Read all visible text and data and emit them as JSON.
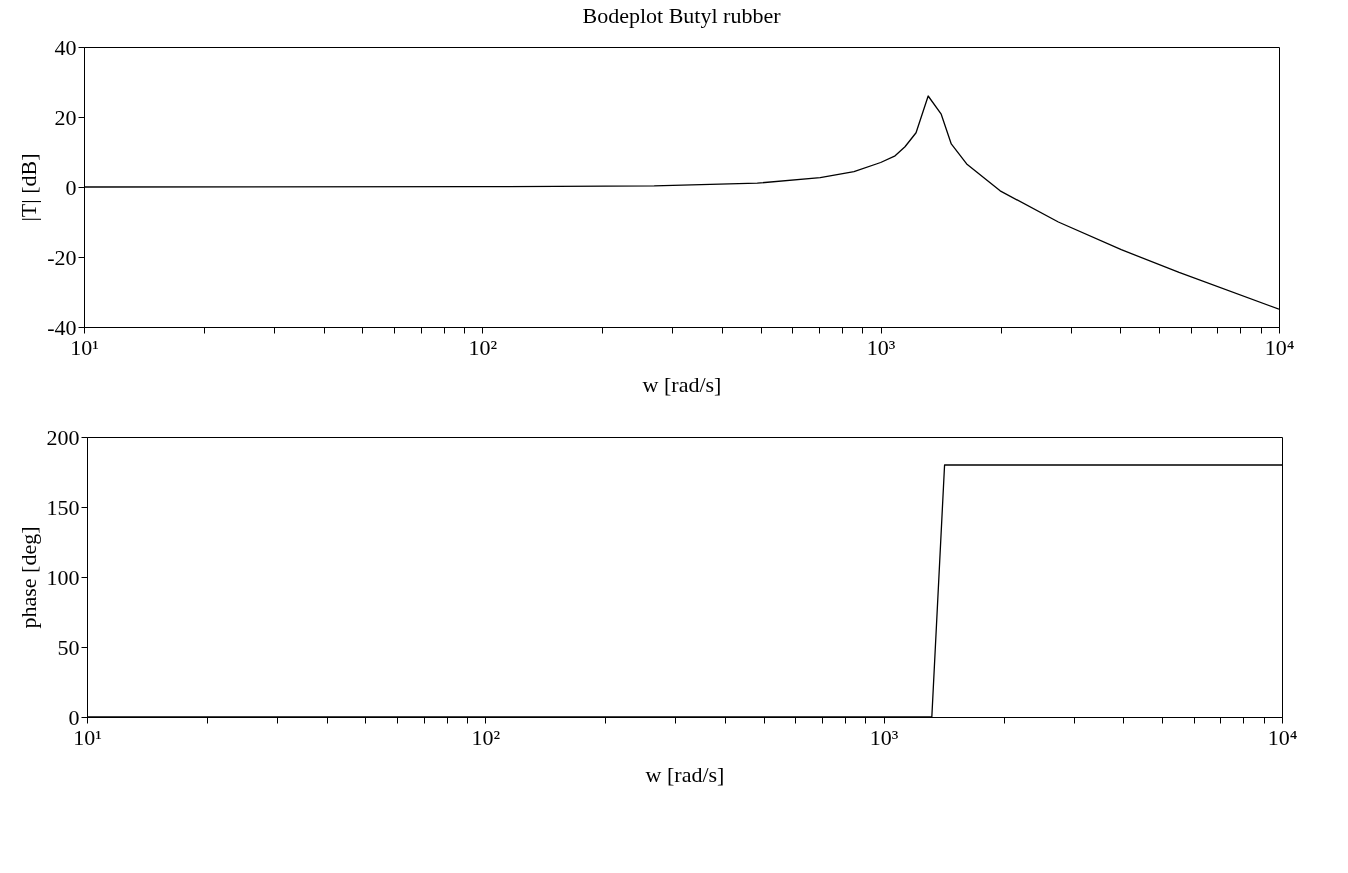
{
  "chart_data": [
    {
      "type": "line",
      "title": "Bodeplot Butyl rubber",
      "xlabel": "w  [rad/s]",
      "ylabel": "|T|  [dB]",
      "log": "x",
      "grid": false,
      "x": [
        10,
        100,
        270,
        490,
        705,
        857,
        1000,
        1087,
        1151,
        1227,
        1316,
        1419,
        1504,
        1644,
        1995,
        2793,
        4018,
        5612,
        10000
      ],
      "series": [
        {
          "color": "#000000",
          "values": [
            0,
            0.1,
            0.3,
            1.1,
            2.7,
            4.4,
            7,
            8.9,
            11.5,
            15.5,
            26,
            20.8,
            12.3,
            6.6,
            -1.1,
            -10,
            -17.9,
            -24.4,
            -34.9
          ]
        }
      ],
      "xlim": [
        10,
        10000
      ],
      "ylim": [
        -40,
        40
      ],
      "yticks": [
        -40,
        -20,
        0,
        20,
        40
      ],
      "xticks": [
        {
          "value": 10,
          "label": "10¹"
        },
        {
          "value": 20,
          "label": null
        },
        {
          "value": 30,
          "label": null
        },
        {
          "value": 40,
          "label": null
        },
        {
          "value": 50,
          "label": null
        },
        {
          "value": 60,
          "label": null
        },
        {
          "value": 70,
          "label": null
        },
        {
          "value": 80,
          "label": null
        },
        {
          "value": 90,
          "label": null
        },
        {
          "value": 100,
          "label": "10²"
        },
        {
          "value": 200,
          "label": null
        },
        {
          "value": 300,
          "label": null
        },
        {
          "value": 400,
          "label": null
        },
        {
          "value": 500,
          "label": null
        },
        {
          "value": 600,
          "label": null
        },
        {
          "value": 700,
          "label": null
        },
        {
          "value": 800,
          "label": null
        },
        {
          "value": 900,
          "label": null
        },
        {
          "value": 1000,
          "label": "10³"
        },
        {
          "value": 2000,
          "label": null
        },
        {
          "value": 3000,
          "label": null
        },
        {
          "value": 4000,
          "label": null
        },
        {
          "value": 5000,
          "label": null
        },
        {
          "value": 6000,
          "label": null
        },
        {
          "value": 7000,
          "label": null
        },
        {
          "value": 8000,
          "label": null
        },
        {
          "value": 9000,
          "label": null
        },
        {
          "value": 10000,
          "label": "10⁴"
        }
      ]
    },
    {
      "type": "line",
      "xlabel": "w  [rad/s]",
      "ylabel": "phase  [deg]",
      "log": "x",
      "grid": false,
      "x": [
        10,
        1321,
        1422,
        10000
      ],
      "series": [
        {
          "color": "#000000",
          "values": [
            0,
            0,
            180,
            180
          ]
        }
      ],
      "xlim": [
        10,
        10000
      ],
      "ylim": [
        0,
        200
      ],
      "yticks": [
        0,
        50,
        100,
        150,
        200
      ],
      "xticks": [
        {
          "value": 10,
          "label": "10¹"
        },
        {
          "value": 20,
          "label": null
        },
        {
          "value": 30,
          "label": null
        },
        {
          "value": 40,
          "label": null
        },
        {
          "value": 50,
          "label": null
        },
        {
          "value": 60,
          "label": null
        },
        {
          "value": 70,
          "label": null
        },
        {
          "value": 80,
          "label": null
        },
        {
          "value": 90,
          "label": null
        },
        {
          "value": 100,
          "label": "10²"
        },
        {
          "value": 200,
          "label": null
        },
        {
          "value": 300,
          "label": null
        },
        {
          "value": 400,
          "label": null
        },
        {
          "value": 500,
          "label": null
        },
        {
          "value": 600,
          "label": null
        },
        {
          "value": 700,
          "label": null
        },
        {
          "value": 800,
          "label": null
        },
        {
          "value": 900,
          "label": null
        },
        {
          "value": 1000,
          "label": "10³"
        },
        {
          "value": 2000,
          "label": null
        },
        {
          "value": 3000,
          "label": null
        },
        {
          "value": 4000,
          "label": null
        },
        {
          "value": 5000,
          "label": null
        },
        {
          "value": 6000,
          "label": null
        },
        {
          "value": 7000,
          "label": null
        },
        {
          "value": 8000,
          "label": null
        },
        {
          "value": 9000,
          "label": null
        },
        {
          "value": 10000,
          "label": "10⁴"
        }
      ]
    }
  ]
}
